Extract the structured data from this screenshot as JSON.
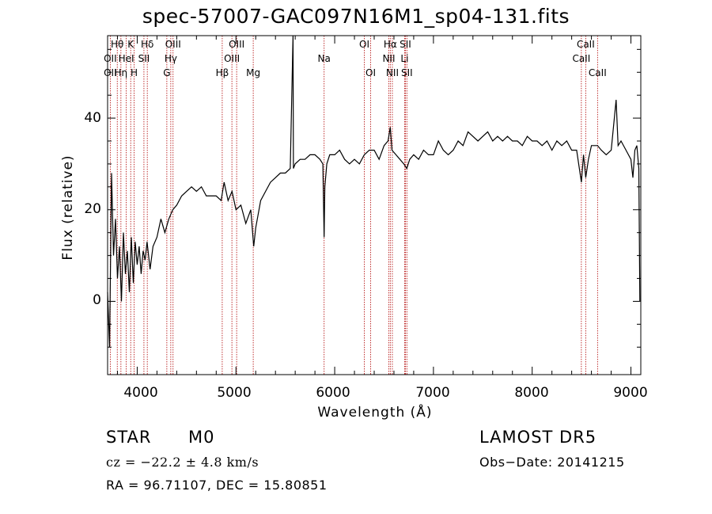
{
  "chart_data": {
    "type": "line",
    "title": "spec-57007-GAC097N16M1_sp04-131.fits",
    "xlabel": "Wavelength (Å)",
    "ylabel": "Flux (relative)",
    "xlim": [
      3700,
      9100
    ],
    "ylim": [
      -16,
      58
    ],
    "xticks": [
      "4000",
      "5000",
      "6000",
      "7000",
      "8000",
      "9000"
    ],
    "yticks": [
      "0",
      "20",
      "40"
    ],
    "grid": false,
    "line_color": "#000000",
    "marker_color": "#b00000",
    "series": [
      {
        "x": [
          3700,
          3720,
          3740,
          3760,
          3780,
          3800,
          3820,
          3840,
          3860,
          3880,
          3900,
          3920,
          3940,
          3960,
          3980,
          4000,
          4020,
          4040,
          4060,
          4080,
          4100,
          4130,
          4160,
          4200,
          4240,
          4280,
          4320,
          4360,
          4400,
          4450,
          4500,
          4550,
          4600,
          4650,
          4700,
          4750,
          4800,
          4850,
          4880,
          4920,
          4960,
          5000,
          5050,
          5100,
          5150,
          5180,
          5200,
          5250,
          5300,
          5350,
          5400,
          5450,
          5500,
          5550,
          5578,
          5582,
          5600,
          5650,
          5700,
          5750,
          5800,
          5850,
          5880,
          5893,
          5900,
          5920,
          5950,
          6000,
          6050,
          6100,
          6150,
          6200,
          6250,
          6300,
          6350,
          6400,
          6450,
          6500,
          6540,
          6563,
          6580,
          6620,
          6660,
          6700,
          6730,
          6760,
          6800,
          6850,
          6900,
          6950,
          7000,
          7050,
          7100,
          7150,
          7200,
          7250,
          7300,
          7350,
          7400,
          7450,
          7500,
          7550,
          7600,
          7650,
          7700,
          7750,
          7800,
          7850,
          7900,
          7950,
          8000,
          8050,
          8100,
          8150,
          8200,
          8250,
          8300,
          8350,
          8400,
          8450,
          8498,
          8520,
          8542,
          8570,
          8600,
          8662,
          8700,
          8750,
          8800,
          8850,
          8870,
          8900,
          8950,
          9000,
          9020,
          9040,
          9060,
          9080,
          9090
        ],
        "y": [
          2,
          -10,
          28,
          10,
          18,
          5,
          12,
          0,
          15,
          6,
          11,
          2,
          14,
          4,
          13,
          8,
          12,
          6,
          11,
          9,
          13,
          7,
          12,
          14,
          18,
          15,
          18,
          20,
          21,
          23,
          24,
          25,
          24,
          25,
          23,
          23,
          23,
          22,
          26,
          22,
          24,
          20,
          21,
          17,
          20,
          12,
          16,
          22,
          24,
          26,
          27,
          28,
          28,
          29,
          58,
          29,
          30,
          31,
          31,
          32,
          32,
          31,
          30,
          14,
          25,
          30,
          32,
          32,
          33,
          31,
          30,
          31,
          30,
          32,
          33,
          33,
          31,
          34,
          35,
          38,
          33,
          32,
          31,
          30,
          29,
          31,
          32,
          31,
          33,
          32,
          32,
          35,
          33,
          32,
          33,
          35,
          34,
          37,
          36,
          35,
          36,
          37,
          35,
          36,
          35,
          36,
          35,
          35,
          34,
          36,
          35,
          35,
          34,
          35,
          33,
          35,
          34,
          35,
          33,
          33,
          26,
          32,
          27,
          31,
          34,
          34,
          33,
          32,
          33,
          44,
          34,
          35,
          33,
          31,
          27,
          33,
          34,
          29,
          0
        ],
        "comment": ""
      }
    ],
    "lines": [
      {
        "name": "Hθ",
        "x": 3798,
        "row": 1
      },
      {
        "name": "OII",
        "x": 3727,
        "row": 2
      },
      {
        "name": "OII",
        "x": 3727,
        "row": 3
      },
      {
        "name": "K",
        "x": 3934,
        "row": 1
      },
      {
        "name": "HeI",
        "x": 3889,
        "row": 2
      },
      {
        "name": "Hη",
        "x": 3835,
        "row": 3
      },
      {
        "name": "H",
        "x": 3969,
        "row": 3
      },
      {
        "name": "Hδ",
        "x": 4102,
        "row": 1
      },
      {
        "name": "SII",
        "x": 4068,
        "row": 2
      },
      {
        "name": "OIII",
        "x": 4363,
        "row": 1
      },
      {
        "name": "Hγ",
        "x": 4340,
        "row": 2
      },
      {
        "name": "G",
        "x": 4300,
        "row": 3
      },
      {
        "name": "OIII",
        "x": 5007,
        "row": 1
      },
      {
        "name": "OIII",
        "x": 4959,
        "row": 2
      },
      {
        "name": "Hβ",
        "x": 4861,
        "row": 3
      },
      {
        "name": "Mg",
        "x": 5175,
        "row": 3
      },
      {
        "name": "Na",
        "x": 5893,
        "row": 2
      },
      {
        "name": "OI",
        "x": 6300,
        "row": 1
      },
      {
        "name": "OI",
        "x": 6364,
        "row": 3
      },
      {
        "name": "Hα",
        "x": 6563,
        "row": 1
      },
      {
        "name": "SII",
        "x": 6716,
        "row": 1
      },
      {
        "name": "NII",
        "x": 6548,
        "row": 2
      },
      {
        "name": "Li",
        "x": 6708,
        "row": 2
      },
      {
        "name": "NII",
        "x": 6584,
        "row": 3
      },
      {
        "name": "SII",
        "x": 6731,
        "row": 3
      },
      {
        "name": "CaII",
        "x": 8542,
        "row": 1
      },
      {
        "name": "CaII",
        "x": 8498,
        "row": 2
      },
      {
        "name": "CaII",
        "x": 8662,
        "row": 3
      }
    ],
    "vlines_x": [
      3727,
      3798,
      3835,
      3889,
      3934,
      3969,
      4068,
      4102,
      4300,
      4340,
      4363,
      4861,
      4959,
      5007,
      5175,
      5893,
      6300,
      6364,
      6548,
      6563,
      6584,
      6708,
      6716,
      6731,
      8498,
      8542,
      8662
    ]
  },
  "footer": {
    "class_label": "STAR",
    "subclass": "M0",
    "cz_text": "cz = −22.2 ± 4.8 km/s",
    "radec": "RA =  96.71107, DEC =  15.80851",
    "survey": "LAMOST DR5",
    "obs_date": "Obs−Date: 20141215"
  }
}
